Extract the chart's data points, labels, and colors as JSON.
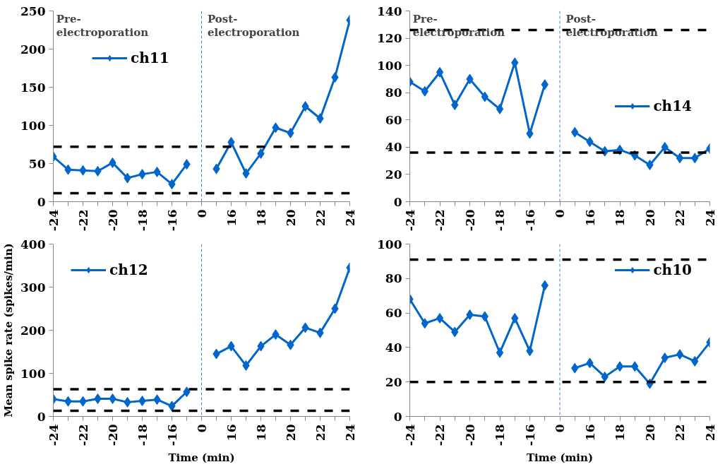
{
  "chart_data": [
    {
      "type": "line",
      "categories": [
        "-24",
        null,
        "-22",
        null,
        "-20",
        null,
        "-18",
        null,
        "-16",
        null,
        "0",
        null,
        "16",
        null,
        "18",
        null,
        "20",
        null,
        "22",
        null,
        "24"
      ],
      "series": [
        {
          "name": "ch11",
          "color": "#0066cc",
          "values": [
            59,
            42,
            41,
            40,
            51,
            31,
            36,
            39,
            23,
            49,
            null,
            43,
            78,
            37,
            63,
            97,
            90,
            125,
            109,
            163,
            238
          ]
        }
      ],
      "ylim": [
        0,
        250
      ],
      "yticks": [
        0,
        50,
        100,
        150,
        200,
        250
      ],
      "grid": false,
      "legend": "top left",
      "marker": "diamond",
      "line_style": "solid",
      "ref_lines": [
        {
          "axis": "x",
          "value": "0",
          "color": "#4a7fd0",
          "line_style": "dashed"
        },
        {
          "axis": "y",
          "value": 72,
          "color": "#000000",
          "line_style": "dashed"
        },
        {
          "axis": "y",
          "value": 11,
          "color": "#000000",
          "line_style": "dashed"
        }
      ],
      "annotations": [
        "Pre-\nelectroporation",
        "Post-\nelectroporation"
      ]
    },
    {
      "type": "line",
      "categories": [
        "-24",
        null,
        "-22",
        null,
        "-20",
        null,
        "-18",
        null,
        "-16",
        null,
        "0",
        null,
        "16",
        null,
        "18",
        null,
        "20",
        null,
        "22",
        null,
        "24"
      ],
      "series": [
        {
          "name": "ch14",
          "color": "#0066cc",
          "values": [
            88,
            81,
            95,
            71,
            90,
            77,
            68,
            102,
            50,
            86,
            null,
            51,
            44,
            37,
            38,
            34,
            27,
            40,
            32,
            32,
            39
          ]
        }
      ],
      "ylim": [
        0,
        140
      ],
      "yticks": [
        0,
        20,
        40,
        60,
        80,
        100,
        120,
        140
      ],
      "grid": false,
      "legend": "right",
      "marker": "diamond",
      "line_style": "solid",
      "ref_lines": [
        {
          "axis": "x",
          "value": "0",
          "color": "#4a7fd0",
          "line_style": "dashed"
        },
        {
          "axis": "y",
          "value": 126,
          "color": "#000000",
          "line_style": "dashed"
        },
        {
          "axis": "y",
          "value": 36,
          "color": "#000000",
          "line_style": "dashed"
        }
      ],
      "annotations": [
        "Pre-\nelectroporation",
        "Post-\nelectroporation"
      ]
    },
    {
      "type": "line",
      "categories": [
        "-24",
        null,
        "-22",
        null,
        "-20",
        null,
        "-18",
        null,
        "-16",
        null,
        "0",
        null,
        "16",
        null,
        "18",
        null,
        "20",
        null,
        "22",
        null,
        "24"
      ],
      "series": [
        {
          "name": "ch12",
          "color": "#0066cc",
          "values": [
            40,
            35,
            35,
            41,
            41,
            33,
            36,
            39,
            24,
            57,
            null,
            145,
            163,
            118,
            163,
            190,
            166,
            206,
            194,
            250,
            345
          ]
        }
      ],
      "ylim": [
        0,
        400
      ],
      "yticks": [
        0,
        100,
        200,
        300,
        400
      ],
      "grid": false,
      "legend": "top left",
      "marker": "diamond",
      "line_style": "solid",
      "xlabel": "Time (min)",
      "ylabel": "Mean spike rate (spikes/min)",
      "ref_lines": [
        {
          "axis": "x",
          "value": "0",
          "color": "#4a7fd0",
          "line_style": "dashed"
        },
        {
          "axis": "y",
          "value": 63,
          "color": "#000000",
          "line_style": "dashed"
        },
        {
          "axis": "y",
          "value": 13,
          "color": "#000000",
          "line_style": "dashed"
        }
      ]
    },
    {
      "type": "line",
      "categories": [
        "-24",
        null,
        "-22",
        null,
        "-20",
        null,
        "-18",
        null,
        "-16",
        null,
        "0",
        null,
        "16",
        null,
        "18",
        null,
        "20",
        null,
        "22",
        null,
        "24"
      ],
      "series": [
        {
          "name": "ch10",
          "color": "#0066cc",
          "values": [
            68,
            54,
            57,
            49,
            59,
            58,
            37,
            57,
            38,
            76,
            null,
            28,
            31,
            23,
            29,
            29,
            19,
            34,
            36,
            32,
            43
          ]
        }
      ],
      "ylim": [
        0,
        100
      ],
      "yticks": [
        0,
        20,
        40,
        60,
        80,
        100
      ],
      "grid": false,
      "legend": "top right",
      "marker": "diamond",
      "line_style": "solid",
      "xlabel": "Time (min)",
      "ref_lines": [
        {
          "axis": "x",
          "value": "0",
          "color": "#4a7fd0",
          "line_style": "dashed"
        },
        {
          "axis": "y",
          "value": 91,
          "color": "#000000",
          "line_style": "dashed"
        },
        {
          "axis": "y",
          "value": 20,
          "color": "#000000",
          "line_style": "dashed"
        }
      ]
    }
  ]
}
